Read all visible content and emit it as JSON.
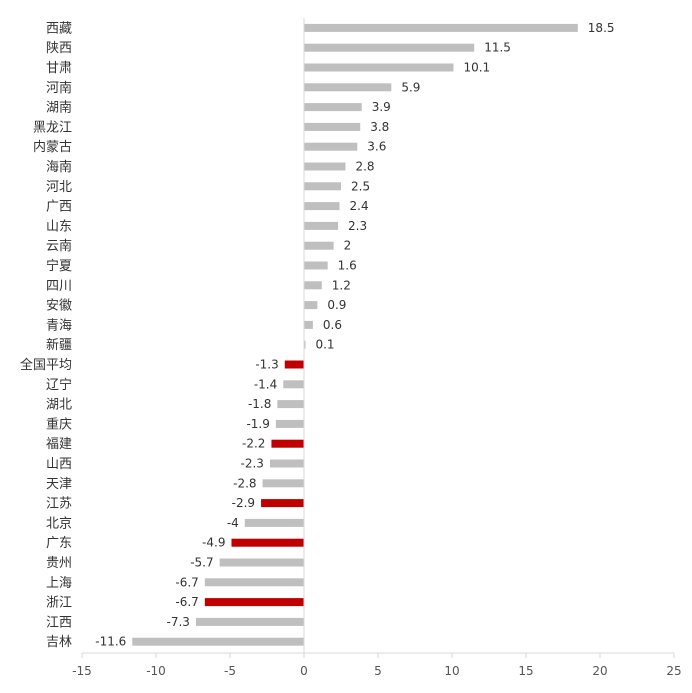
{
  "chart_data": {
    "type": "bar",
    "orientation": "horizontal",
    "categories": [
      "西藏",
      "陕西",
      "甘肃",
      "河南",
      "湖南",
      "黑龙江",
      "内蒙古",
      "海南",
      "河北",
      "广西",
      "山东",
      "云南",
      "宁夏",
      "四川",
      "安徽",
      "青海",
      "新疆",
      "全国平均",
      "辽宁",
      "湖北",
      "重庆",
      "福建",
      "山西",
      "天津",
      "江苏",
      "北京",
      "广东",
      "贵州",
      "上海",
      "浙江",
      "江西",
      "吉林"
    ],
    "values": [
      18.5,
      11.5,
      10.1,
      5.9,
      3.9,
      3.8,
      3.6,
      2.8,
      2.5,
      2.4,
      2.3,
      2,
      1.6,
      1.2,
      0.9,
      0.6,
      0.1,
      -1.3,
      -1.4,
      -1.8,
      -1.9,
      -2.2,
      -2.3,
      -2.8,
      -2.9,
      -4,
      -4.9,
      -5.7,
      -6.7,
      -6.7,
      -7.3,
      -11.6
    ],
    "value_labels": [
      "18.5",
      "11.5",
      "10.1",
      "5.9",
      "3.9",
      "3.8",
      "3.6",
      "2.8",
      "2.5",
      "2.4",
      "2.3",
      "2",
      "1.6",
      "1.2",
      "0.9",
      "0.6",
      "0.1",
      "-1.3",
      "-1.4",
      "-1.8",
      "-1.9",
      "-2.2",
      "-2.3",
      "-2.8",
      "-2.9",
      "-4",
      "-4.9",
      "-5.7",
      "-6.7",
      "-6.7",
      "-7.3",
      "-11.6"
    ],
    "highlighted": [
      "全国平均",
      "福建",
      "江苏",
      "广东",
      "浙江"
    ],
    "colors": {
      "default": "#bfbfbf",
      "highlight": "#c00000",
      "axis": "#d9d9d9"
    },
    "xlim": [
      -15,
      25
    ],
    "xticks": [
      -15,
      -10,
      -5,
      0,
      5,
      10,
      15,
      20,
      25
    ],
    "xtick_labels": [
      "-15",
      "-10",
      "-5",
      "0",
      "5",
      "10",
      "15",
      "20",
      "25"
    ],
    "grid": false,
    "title": "",
    "xlabel": "",
    "ylabel": ""
  }
}
